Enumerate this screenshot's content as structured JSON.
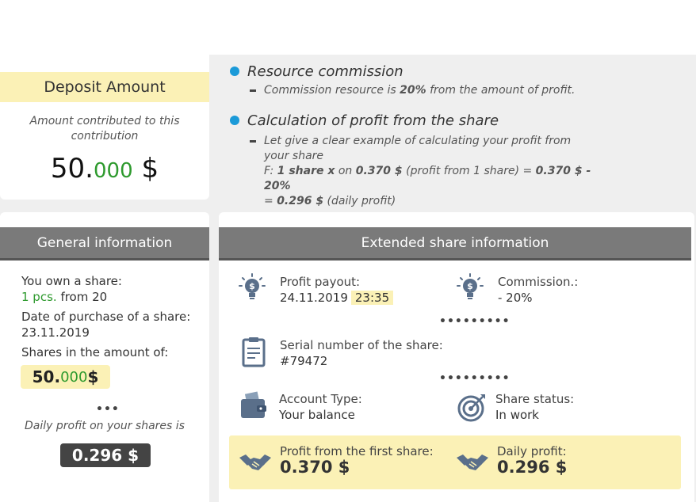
{
  "deposit": {
    "title": "Deposit Amount",
    "subtitle": "Amount contributed to this contribution",
    "amount_int": "50.",
    "amount_dec": "000",
    "currency": "$"
  },
  "commission": {
    "title": "Resource commission",
    "text_prefix": "Commission resource is ",
    "text_bold": "20%",
    "text_suffix": " from the amount of profit."
  },
  "calculation": {
    "title": "Calculation of profit from the share",
    "line1": "Let give a clear example of calculating your profit from your share",
    "line2_a": "F: ",
    "line2_b": "1 share x",
    "line2_c": " on ",
    "line2_d": "0.370 $",
    "line2_e": " (profit from 1 share) = ",
    "line2_f": "0.370 $ - 20%",
    "line3_a": "= ",
    "line3_b": "0.296 $",
    "line3_c": " (daily profit)"
  },
  "general": {
    "header": "General information",
    "own_label": "You own a share:",
    "own_count": "1 pcs.",
    "own_from": " from 20",
    "date_label": "Date of purchase of a share:",
    "date_value": "23.11.2019",
    "amount_label": "Shares in the amount of:",
    "amount_int": "50.",
    "amount_dec": "000",
    "amount_currency": " $",
    "dots": "•••",
    "daily_label": "Daily profit on your shares is",
    "daily_value": "0.296 $"
  },
  "extended": {
    "header": "Extended share information",
    "payout_label": "Profit payout:",
    "payout_date": "24.11.2019",
    "payout_time": "23:35",
    "commission_label": "Commission.:",
    "commission_value": "- 20%",
    "dots1": "•••••••••",
    "serial_label": "Serial number of the share:",
    "serial_value": "#79472",
    "dots2": "•••••••••",
    "account_label": "Account Type:",
    "account_value": "Your balance",
    "status_label": "Share status:",
    "status_value": "In work",
    "first_profit_label": "Profit from the first share:",
    "first_profit_value": "0.370 $",
    "daily_profit_label": "Daily profit:",
    "daily_profit_value": "0.296 $"
  },
  "colors": {
    "accent_blue": "#1b9ad8",
    "highlight_yellow": "#fbf1b6",
    "header_grey": "#7a7a7a",
    "green": "#2e9a2e",
    "icon_blue": "#5a6f8a"
  },
  "icons": [
    "lightbulb-dollar-icon",
    "clipboard-icon",
    "wallet-icon",
    "target-icon",
    "handshake-icon"
  ]
}
